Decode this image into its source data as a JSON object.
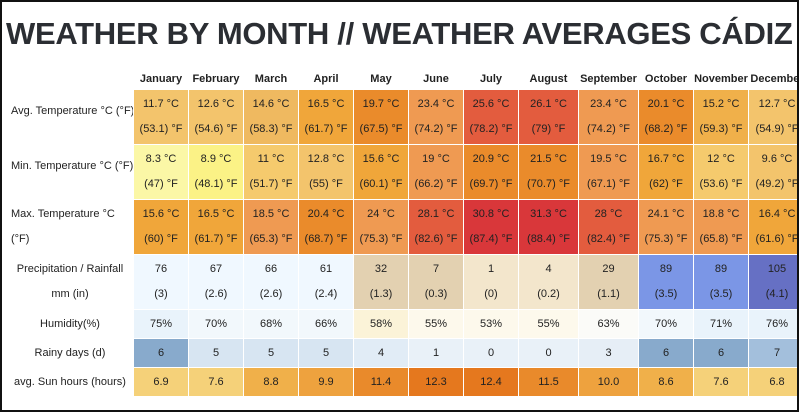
{
  "title": "WEATHER BY MONTH // WEATHER AVERAGES CÁDIZ",
  "months": [
    "January",
    "February",
    "March",
    "April",
    "May",
    "June",
    "July",
    "August",
    "September",
    "October",
    "November",
    "December"
  ],
  "rows": [
    {
      "label": [
        "Avg. Temperature °C (°F)",
        ""
      ],
      "values": [
        "11.7 °C",
        "12.6 °C",
        "14.6 °C",
        "16.5 °C",
        "19.7 °C",
        "23.4 °C",
        "25.6 °C",
        "26.1 °C",
        "23.4 °C",
        "20.1 °C",
        "15.2 °C",
        "12.7 °C"
      ],
      "values2": [
        "(53.1) °F",
        "(54.6) °F",
        "(58.3) °F",
        "(61.7) °F",
        "(67.5) °F",
        "(74.2) °F",
        "(78.2) °F",
        "(79) °F",
        "(74.2) °F",
        "(68.2) °F",
        "(59.3) °F",
        "(54.9) °F"
      ],
      "colors": [
        "#f3c46c",
        "#f3c46c",
        "#efb960",
        "#f0a63a",
        "#ea8b2b",
        "#ef9a52",
        "#e35c3e",
        "#e35c3e",
        "#ef9a52",
        "#ea8b2b",
        "#f0b04a",
        "#f3c46c"
      ]
    },
    {
      "label": [
        "Min. Temperature °C (°F)",
        ""
      ],
      "values": [
        "8.3 °C",
        "8.9 °C",
        "11 °C",
        "12.8 °C",
        "15.6 °C",
        "19 °C",
        "20.9 °C",
        "21.5 °C",
        "19.5 °C",
        "16.7 °C",
        "12 °C",
        "9.6 °C"
      ],
      "values2": [
        "(47) °F",
        "(48.1) °F",
        "(51.7) °F",
        "(55) °F",
        "(60.1) °F",
        "(66.2) °F",
        "(69.7) °F",
        "(70.7) °F",
        "(67.1) °F",
        "(62) °F",
        "(53.6) °F",
        "(49.2) °F"
      ],
      "colors": [
        "#fbf7a6",
        "#fbf286",
        "#f5ca6d",
        "#f3c46c",
        "#f0a63a",
        "#ef9a52",
        "#ea8b2b",
        "#ea8b2b",
        "#ef9a52",
        "#f0a63a",
        "#f5ca6d",
        "#f3c46c"
      ]
    },
    {
      "label": [
        "Max. Temperature °C",
        "(°F)"
      ],
      "values": [
        "15.6 °C",
        "16.5 °C",
        "18.5 °C",
        "20.4 °C",
        "24 °C",
        "28.1 °C",
        "30.8 °C",
        "31.3 °C",
        "28 °C",
        "24.1 °C",
        "18.8 °C",
        "16.4 °C"
      ],
      "values2": [
        "(60) °F",
        "(61.7) °F",
        "(65.3) °F",
        "(68.7) °F",
        "(75.3) °F",
        "(82.6) °F",
        "(87.4) °F",
        "(88.4) °F",
        "(82.4) °F",
        "(75.3) °F",
        "(65.8) °F",
        "(61.6) °F"
      ],
      "colors": [
        "#f0a63a",
        "#f0a63a",
        "#ef9a52",
        "#ea8b2b",
        "#ef9a52",
        "#e35c3e",
        "#d9373a",
        "#d9373a",
        "#e35c3e",
        "#ef9a52",
        "#ef9a52",
        "#f0a63a"
      ]
    },
    {
      "label": [
        "Precipitation / Rainfall",
        "mm (in)"
      ],
      "values": [
        "76",
        "67",
        "66",
        "61",
        "32",
        "7",
        "1",
        "4",
        "29",
        "89",
        "89",
        "105"
      ],
      "values2": [
        "(3)",
        "(2.6)",
        "(2.6)",
        "(2.4)",
        "(1.3)",
        "(0.3)",
        "(0)",
        "(0.2)",
        "(1.1)",
        "(3.5)",
        "(3.5)",
        "(4.1)"
      ],
      "colors": [
        "#f0f8ff",
        "#f0f8ff",
        "#f0f8ff",
        "#f0f8ff",
        "#e3d1b1",
        "#e3d1b1",
        "#f3e6cc",
        "#f3e6cc",
        "#e3d1b1",
        "#7b96e6",
        "#7b96e6",
        "#6670c4"
      ]
    },
    {
      "label": [
        "Humidity(%)"
      ],
      "values": [
        "75%",
        "70%",
        "68%",
        "66%",
        "58%",
        "55%",
        "53%",
        "55%",
        "63%",
        "70%",
        "71%",
        "76%"
      ],
      "colors": [
        "#e9f3fb",
        "#f2f8fc",
        "#f2f8fc",
        "#f2f8fc",
        "#fbf3d8",
        "#fdf9ec",
        "#fdf9ec",
        "#fdf9ec",
        "#fbfbf8",
        "#f2f8fc",
        "#e9f3fb",
        "#e9f3fb"
      ]
    },
    {
      "label": [
        "Rainy days (d)"
      ],
      "values": [
        "6",
        "5",
        "5",
        "5",
        "4",
        "1",
        "0",
        "0",
        "3",
        "6",
        "6",
        "7"
      ],
      "colors": [
        "#88aacc",
        "#d7e5f2",
        "#d7e5f2",
        "#d7e5f2",
        "#e1ecf6",
        "#e9f1f8",
        "#e9f1f8",
        "#e9f1f8",
        "#e6eef6",
        "#88aacc",
        "#88aacc",
        "#a3bfdc"
      ]
    },
    {
      "label": [
        "avg. Sun hours (hours)"
      ],
      "values": [
        "6.9",
        "7.6",
        "8.8",
        "9.9",
        "11.4",
        "12.3",
        "12.4",
        "11.5",
        "10.0",
        "8.6",
        "7.6",
        "6.8"
      ],
      "colors": [
        "#f5d179",
        "#f5d179",
        "#f0b04a",
        "#eea23e",
        "#e98a2b",
        "#e5781e",
        "#e5781e",
        "#e98a2b",
        "#eea23e",
        "#f0b04a",
        "#f5d179",
        "#f5d179"
      ]
    }
  ]
}
